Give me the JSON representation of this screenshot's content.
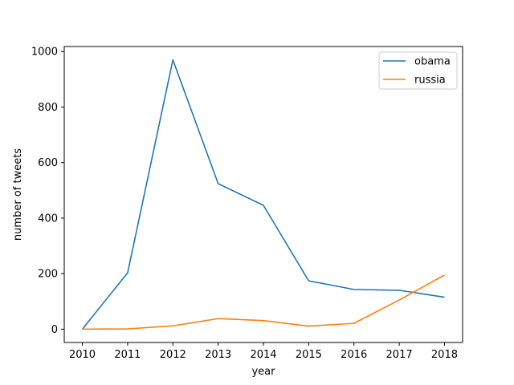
{
  "chart_data": {
    "type": "line",
    "title": "",
    "xlabel": "year",
    "ylabel": "number of tweets",
    "x": [
      2010,
      2011,
      2012,
      2013,
      2014,
      2015,
      2016,
      2017,
      2018
    ],
    "xlim": [
      2009.6,
      2018.4
    ],
    "ylim": [
      -48,
      1018
    ],
    "x_ticks": [
      2010,
      2011,
      2012,
      2013,
      2014,
      2015,
      2016,
      2017,
      2018
    ],
    "y_ticks": [
      0,
      200,
      400,
      600,
      800,
      1000
    ],
    "grid": false,
    "legend_position": "top-right",
    "series": [
      {
        "name": "obama",
        "color": "#1f77b4",
        "values": [
          0,
          203,
          970,
          524,
          446,
          174,
          143,
          140,
          115
        ]
      },
      {
        "name": "russia",
        "color": "#ff7f0e",
        "values": [
          0,
          1,
          12,
          38,
          31,
          11,
          21,
          105,
          195
        ]
      }
    ]
  }
}
